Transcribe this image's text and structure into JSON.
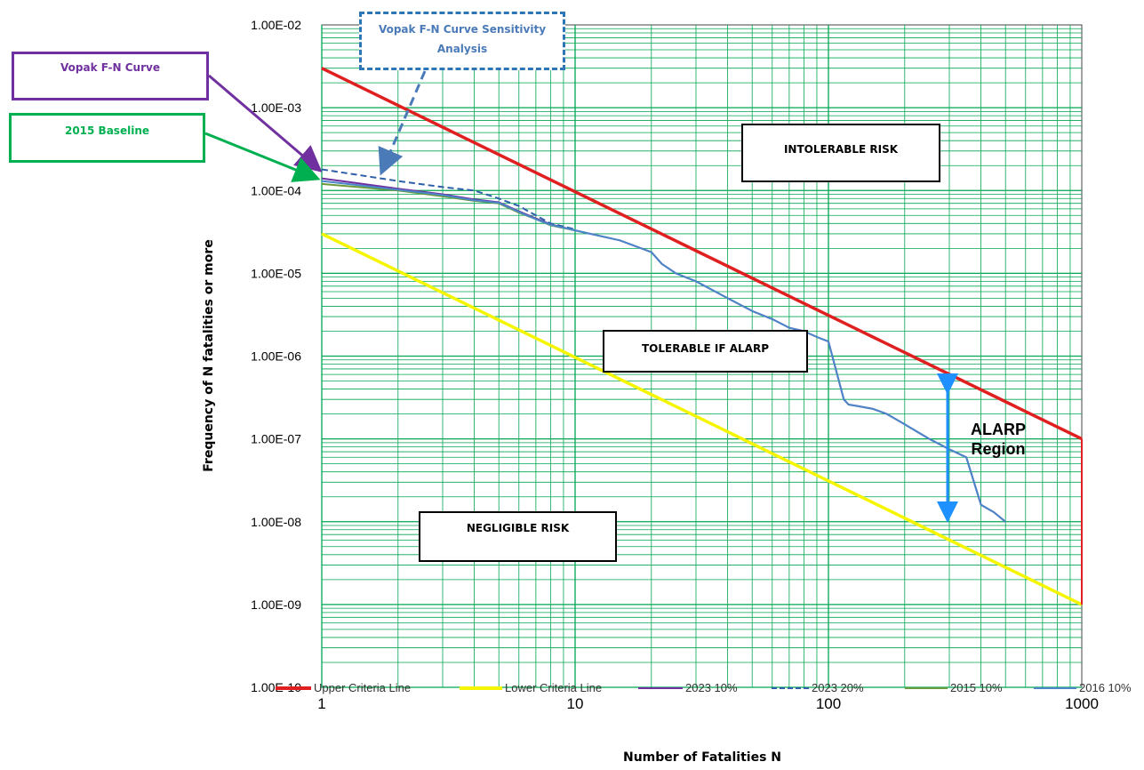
{
  "chart_data": {
    "type": "line",
    "xscale": "log",
    "yscale": "log",
    "xlim": [
      1,
      1000
    ],
    "ylim": [
      1e-10,
      0.01
    ],
    "xlabel": "Number of Fatalities N",
    "ylabel": "Frequency of N fatalities or more",
    "x_tick_labels": [
      "1",
      "10",
      "100",
      "1000"
    ],
    "y_tick_labels": [
      "1.00E-10",
      "1.00E-09",
      "1.00E-08",
      "1.00E-07",
      "1.00E-06",
      "1.00E-05",
      "1.00E-04",
      "1.00E-03",
      "1.00E-02"
    ],
    "grid": true,
    "legend_position": "bottom",
    "series": [
      {
        "name": "Upper Criteria Line",
        "color": "#e02020",
        "style": "solid",
        "x": [
          1,
          1000
        ],
        "y": [
          0.003,
          1e-07
        ]
      },
      {
        "name": "Lower Criteria Line",
        "color": "#f5f500",
        "style": "solid",
        "x": [
          1,
          1000
        ],
        "y": [
          3e-05,
          1e-09
        ]
      },
      {
        "name": "2023 10%",
        "color": "#7030a0",
        "style": "solid",
        "x": [
          1,
          2,
          3,
          4,
          5,
          6,
          7,
          8,
          10,
          15,
          20,
          22,
          25,
          30,
          40,
          50,
          60,
          70,
          80,
          90,
          100,
          115,
          120,
          130,
          150,
          170,
          200,
          250,
          300,
          350,
          400,
          450,
          500
        ],
        "y": [
          0.00014,
          0.000105,
          9e-05,
          7.8e-05,
          7.2e-05,
          5.6e-05,
          4.6e-05,
          3.9e-05,
          3.3e-05,
          2.5e-05,
          1.8e-05,
          1.3e-05,
          1e-05,
          8e-06,
          5e-06,
          3.5e-06,
          2.8e-06,
          2.2e-06,
          2e-06,
          1.7e-06,
          1.5e-06,
          3e-07,
          2.6e-07,
          2.5e-07,
          2.3e-07,
          2e-07,
          1.5e-07,
          1e-07,
          7.5e-08,
          6e-08,
          1.6e-08,
          1.3e-08,
          1e-08
        ]
      },
      {
        "name": "2023 20%",
        "color": "#2e5fa8",
        "style": "dashed",
        "x": [
          1,
          2,
          3,
          4,
          5,
          6,
          7,
          8,
          10
        ],
        "y": [
          0.00018,
          0.00013,
          0.00011,
          0.0001,
          8e-05,
          6.5e-05,
          5e-05,
          4e-05,
          3.4e-05
        ]
      },
      {
        "name": "2015 10%",
        "color": "#6a9a3a",
        "style": "solid",
        "x": [
          1,
          2,
          3,
          4,
          5,
          6,
          7,
          8,
          10
        ],
        "y": [
          0.00012,
          0.0001,
          8.5e-05,
          7.5e-05,
          7e-05,
          5.4e-05,
          4.5e-05,
          3.8e-05,
          3.3e-05
        ]
      },
      {
        "name": "2016 10%",
        "color": "#4a86c8",
        "style": "solid",
        "x": [
          1,
          2,
          3,
          4,
          5,
          6,
          7,
          8,
          10,
          15,
          20,
          22,
          25,
          30,
          40,
          50,
          60,
          70,
          80,
          90,
          100,
          115,
          120,
          130,
          150,
          170,
          200,
          250,
          300,
          350,
          400,
          450,
          500
        ],
        "y": [
          0.00013,
          0.000102,
          8.8e-05,
          7.6e-05,
          7.1e-05,
          5.5e-05,
          4.5e-05,
          3.85e-05,
          3.3e-05,
          2.5e-05,
          1.8e-05,
          1.3e-05,
          1e-05,
          8e-06,
          5e-06,
          3.5e-06,
          2.8e-06,
          2.2e-06,
          2e-06,
          1.7e-06,
          1.5e-06,
          3e-07,
          2.6e-07,
          2.5e-07,
          2.3e-07,
          2e-07,
          1.5e-07,
          1e-07,
          7.5e-08,
          6e-08,
          1.6e-08,
          1.3e-08,
          1e-08
        ]
      }
    ],
    "regions": {
      "intolerable": "INTOLERABLE RISK",
      "tolerable": "TOLERABLE IF ALARP",
      "negligible": "NEGLIGIBLE RISK"
    },
    "callouts": {
      "vopak_fn": "Vopak F-N Curve",
      "baseline": "2015 Baseline",
      "sensitivity": "Vopak F-N Curve Sensitivity Analysis",
      "alarp_line1": "ALARP",
      "alarp_line2": "Region"
    },
    "colors": {
      "grid": "#00a651",
      "vopak_callout": "#7030a0",
      "baseline_callout": "#00b050",
      "sensitivity_callout": "#2e75b6",
      "alarp_arrow": "#1e90ff"
    }
  }
}
